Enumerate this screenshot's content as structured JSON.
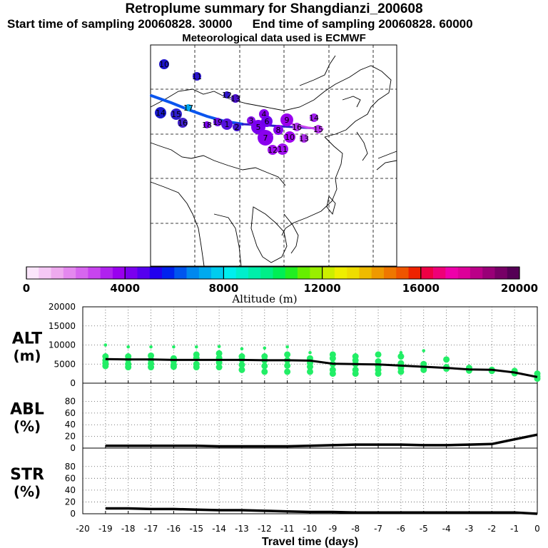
{
  "header": {
    "title": "Retroplume summary for Shangdianzi_200608",
    "start_label": "Start time of sampling 20060828. 30000",
    "end_label": "End time of sampling 20060828. 60000",
    "met_label": "Meteorological data used is ECMWF"
  },
  "colorbar": {
    "tick_labels": [
      "0",
      "4000",
      "8000",
      "12000",
      "16000",
      "20000"
    ],
    "title": "Altitude (m)",
    "colors": [
      "#fbe6fb",
      "#f5c8f5",
      "#eeaaee",
      "#e488ee",
      "#d766ee",
      "#c844ee",
      "#b022ee",
      "#9900ee",
      "#7a00ee",
      "#5500ee",
      "#2200ee",
      "#0022ee",
      "#0055ee",
      "#0088ee",
      "#00aaee",
      "#00ccee",
      "#00eeee",
      "#00eecc",
      "#00eeaa",
      "#00ee88",
      "#00ee55",
      "#22ee22",
      "#66ee00",
      "#99ee00",
      "#ccee00",
      "#eeee00",
      "#eedd00",
      "#eebb00",
      "#ee9900",
      "#ee7700",
      "#ee5500",
      "#ee2200",
      "#ee0044",
      "#ee0077",
      "#ee00aa",
      "#dd0099",
      "#bb0088",
      "#990077",
      "#770066",
      "#550055"
    ]
  },
  "map": {
    "point_labels": [
      "10",
      "11",
      "12",
      "13",
      "14",
      "15",
      "16",
      "17",
      "18",
      "19",
      "1",
      "2",
      "3",
      "4",
      "5",
      "6",
      "7",
      "8",
      "9"
    ]
  },
  "chart_data": [
    {
      "type": "scatter",
      "name": "ALT",
      "ylabel_lines": [
        "ALT",
        "(m)"
      ],
      "ylim": [
        0,
        20000
      ],
      "yticks": [
        "20000",
        "15000",
        "10000",
        "5000",
        "0"
      ],
      "xlim": [
        -20,
        0
      ],
      "mean_line": {
        "x": [
          -19,
          -18,
          -17,
          -16,
          -15,
          -14,
          -13,
          -12,
          -11,
          -10,
          -9,
          -8,
          -7,
          -6,
          -5,
          -4,
          -3,
          -2,
          -1,
          0
        ],
        "y": [
          6300,
          6200,
          6200,
          6100,
          6100,
          6100,
          6100,
          6000,
          6000,
          5900,
          5100,
          5000,
          4900,
          4600,
          4300,
          4000,
          3600,
          3500,
          2800,
          1600
        ]
      },
      "points": [
        [
          -19,
          10000
        ],
        [
          -19,
          7000
        ],
        [
          -19,
          6000
        ],
        [
          -19,
          5200
        ],
        [
          -19,
          4500
        ],
        [
          -18,
          9500
        ],
        [
          -18,
          7000
        ],
        [
          -18,
          6200
        ],
        [
          -18,
          5000
        ],
        [
          -18,
          4200
        ],
        [
          -17,
          9500
        ],
        [
          -17,
          7200
        ],
        [
          -17,
          6100
        ],
        [
          -17,
          5100
        ],
        [
          -17,
          4200
        ],
        [
          -16,
          9500
        ],
        [
          -16,
          6500
        ],
        [
          -16,
          5800
        ],
        [
          -16,
          4800
        ],
        [
          -16,
          4300
        ],
        [
          -15,
          9500
        ],
        [
          -15,
          7500
        ],
        [
          -15,
          6600
        ],
        [
          -15,
          5000
        ],
        [
          -15,
          4200
        ],
        [
          -14,
          9600
        ],
        [
          -14,
          7800
        ],
        [
          -14,
          6600
        ],
        [
          -14,
          5400
        ],
        [
          -14,
          4200
        ],
        [
          -13,
          9000
        ],
        [
          -13,
          7000
        ],
        [
          -13,
          6200
        ],
        [
          -13,
          4800
        ],
        [
          -13,
          3500
        ],
        [
          -12,
          9200
        ],
        [
          -12,
          7000
        ],
        [
          -12,
          6000
        ],
        [
          -12,
          4500
        ],
        [
          -12,
          3000
        ],
        [
          -11,
          9500
        ],
        [
          -11,
          7500
        ],
        [
          -11,
          6000
        ],
        [
          -11,
          4600
        ],
        [
          -11,
          3000
        ],
        [
          -10,
          8000
        ],
        [
          -10,
          6500
        ],
        [
          -10,
          5300
        ],
        [
          -10,
          4300
        ],
        [
          -10,
          3000
        ],
        [
          -9,
          7500
        ],
        [
          -9,
          6500
        ],
        [
          -9,
          5000
        ],
        [
          -9,
          3500
        ],
        [
          -9,
          2500
        ],
        [
          -8,
          7000
        ],
        [
          -8,
          6000
        ],
        [
          -8,
          5000
        ],
        [
          -8,
          3500
        ],
        [
          -8,
          2500
        ],
        [
          -7,
          7500
        ],
        [
          -7,
          5700
        ],
        [
          -7,
          4500
        ],
        [
          -7,
          3500
        ],
        [
          -7,
          2500
        ],
        [
          -6,
          8000
        ],
        [
          -6,
          7000
        ],
        [
          -6,
          5200
        ],
        [
          -6,
          4000
        ],
        [
          -6,
          3000
        ],
        [
          -5,
          8500
        ],
        [
          -5,
          5000
        ],
        [
          -5,
          4200
        ],
        [
          -5,
          3500
        ],
        [
          -4,
          6200
        ],
        [
          -4,
          4200
        ],
        [
          -4,
          3800
        ],
        [
          -3,
          4000
        ],
        [
          -3,
          3300
        ],
        [
          -2,
          3500
        ],
        [
          -2,
          3200
        ],
        [
          -1,
          3200
        ],
        [
          -1,
          2600
        ],
        [
          0,
          2500
        ],
        [
          0,
          1800
        ],
        [
          0,
          1200
        ]
      ]
    },
    {
      "type": "line",
      "name": "ABL",
      "ylabel_lines": [
        "ABL",
        "(%)"
      ],
      "ylim": [
        0,
        100
      ],
      "yticks": [
        "80",
        "60",
        "40",
        "20",
        "0"
      ],
      "xlim": [
        -20,
        0
      ],
      "x": [
        -19,
        -18,
        -17,
        -16,
        -15,
        -14,
        -13,
        -12,
        -11,
        -10,
        -9,
        -8,
        -7,
        -6,
        -5,
        -4,
        -3,
        -2,
        -1,
        0
      ],
      "y": [
        4,
        4,
        4,
        4,
        4,
        3,
        3,
        3,
        3,
        4,
        5,
        6,
        6,
        6,
        5,
        5,
        6,
        7,
        15,
        23
      ]
    },
    {
      "type": "line",
      "name": "STR",
      "ylabel_lines": [
        "STR",
        "(%)"
      ],
      "ylim": [
        0,
        100
      ],
      "yticks": [
        "80",
        "60",
        "40",
        "20",
        "0"
      ],
      "xlim": [
        -20,
        0
      ],
      "xticks": [
        "-20",
        "-19",
        "-18",
        "-17",
        "-16",
        "-15",
        "-14",
        "-13",
        "-12",
        "-11",
        "-10",
        "-9",
        "-8",
        "-7",
        "-6",
        "-5",
        "-4",
        "-3",
        "-2",
        "-1",
        "0"
      ],
      "xlabel": "Travel time (days)",
      "x": [
        -19,
        -18,
        -17,
        -16,
        -15,
        -14,
        -13,
        -12,
        -11,
        -10,
        -9,
        -8,
        -7,
        -6,
        -5,
        -4,
        -3,
        -2,
        -1,
        0
      ],
      "y": [
        9,
        9,
        8,
        8,
        7,
        6,
        6,
        5,
        4,
        3,
        3,
        2,
        2,
        2,
        2,
        2,
        2,
        2,
        2,
        0
      ]
    }
  ]
}
